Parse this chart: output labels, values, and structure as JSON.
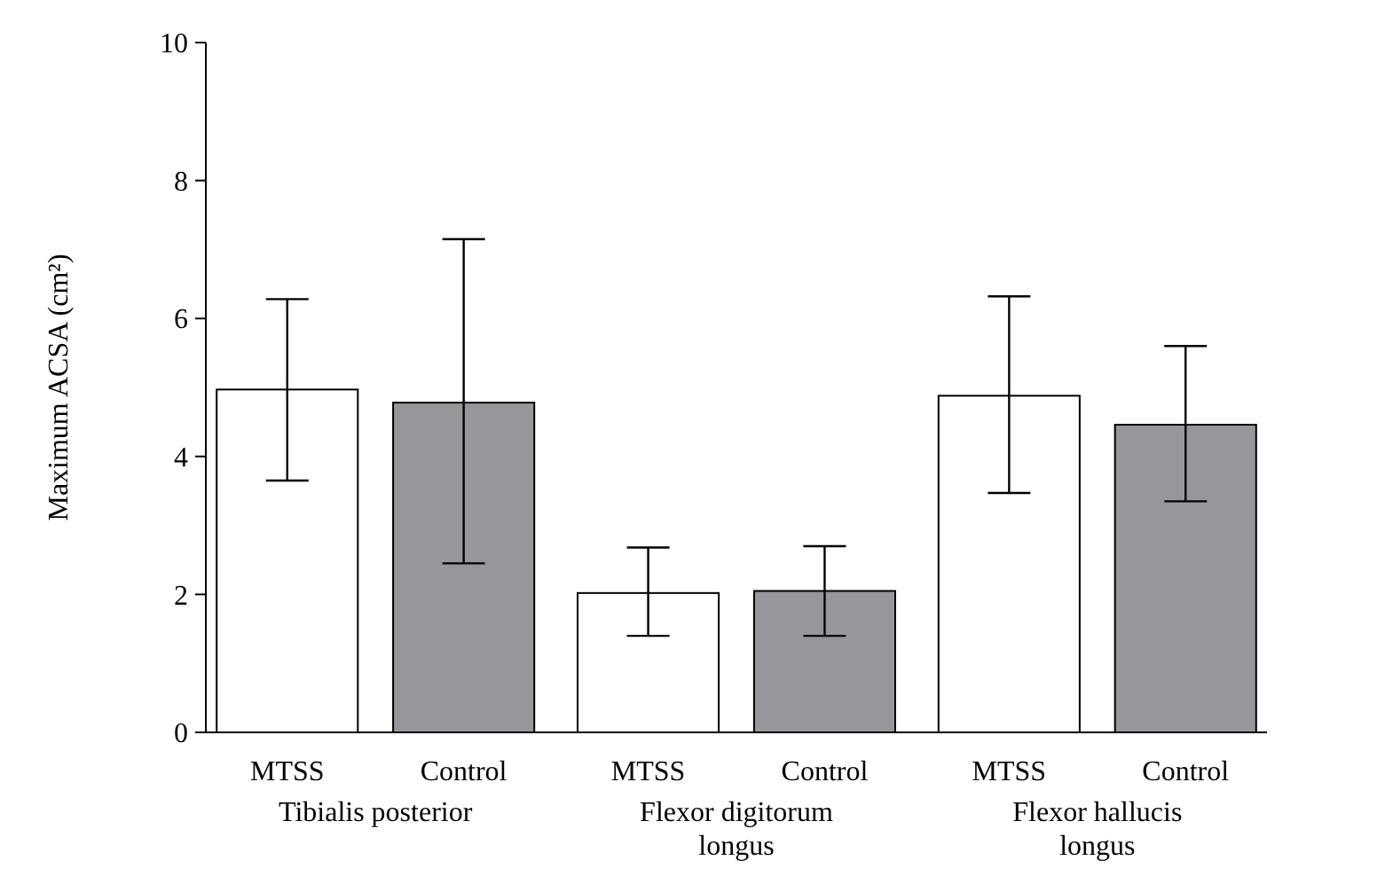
{
  "chart_data": {
    "type": "bar",
    "ylabel": "Maximum ACSA (cm²)",
    "categories": [
      "Tibialis posterior",
      "Flexor digitorum longus",
      "Flexor hallucis longus"
    ],
    "series": [
      {
        "name": "MTSS",
        "color": "#ffffff",
        "values": [
          4.97,
          2.02,
          4.88
        ],
        "errors": [
          [
            3.65,
            6.28
          ],
          [
            1.4,
            2.68
          ],
          [
            3.47,
            6.32
          ]
        ]
      },
      {
        "name": "Control",
        "color": "#97969b",
        "values": [
          4.78,
          2.05,
          4.46
        ],
        "errors": [
          [
            2.45,
            7.15
          ],
          [
            1.4,
            2.7
          ],
          [
            3.35,
            5.6
          ]
        ]
      }
    ],
    "ylim": [
      0,
      10
    ],
    "yticks": [
      0,
      2,
      4,
      6,
      8,
      10
    ],
    "grid": false,
    "legend": false
  }
}
